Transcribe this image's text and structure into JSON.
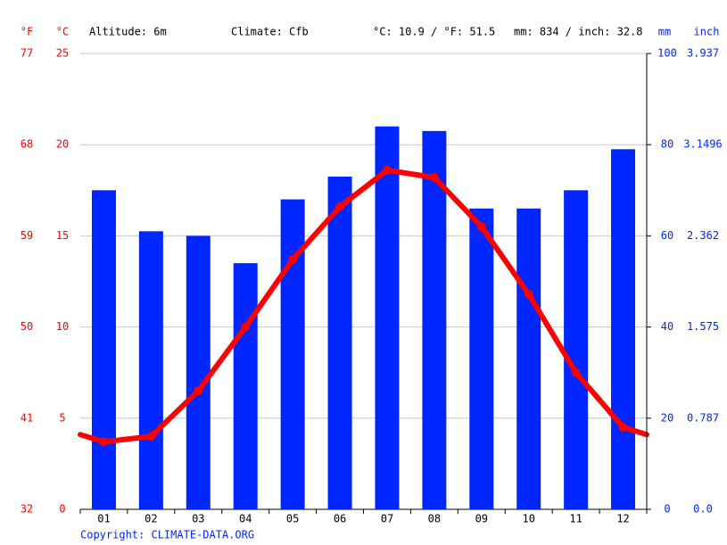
{
  "chart_data": {
    "type": "climate",
    "altitude": "Altitude: 6m",
    "climate": "Climate: Cfb",
    "temperature_summary": "°C: 10.9 / °F: 51.5",
    "precipitation_summary": "mm: 834 / inch: 32.8",
    "y_label": "°C",
    "f_label": "°F",
    "y2_label": "mm",
    "inch_label": "inch",
    "copyright": "Copyright: CLIMATE-DATA.ORG",
    "categories": [
      "01",
      "02",
      "03",
      "04",
      "05",
      "06",
      "07",
      "08",
      "09",
      "10",
      "11",
      "12"
    ],
    "ylim": [
      0,
      25
    ],
    "yticks": [
      0,
      5,
      10,
      15,
      20,
      25
    ],
    "flim": [
      32,
      77
    ],
    "fticks": [
      32,
      41,
      50,
      59,
      68,
      77
    ],
    "y2lim": [
      0,
      100
    ],
    "y2ticks": [
      0,
      20,
      40,
      60,
      80,
      100
    ],
    "inchlim": [
      0,
      3.937
    ],
    "inchticks": [
      {
        "value": 0,
        "label": "0.0"
      },
      0.787,
      1.575,
      2.362,
      3.1496,
      3.937
    ],
    "grid": true,
    "series": [
      {
        "type": "bar",
        "axis": "y2",
        "color": "#0026ff",
        "values": [
          70,
          61,
          60,
          54,
          68,
          73,
          84,
          83,
          66,
          66,
          70,
          79
        ]
      },
      {
        "type": "line",
        "color": "#ff0000",
        "values": [
          3.7,
          4.0,
          6.5,
          10.0,
          13.7,
          16.6,
          18.6,
          18.2,
          15.5,
          11.8,
          7.5,
          4.5
        ]
      }
    ]
  }
}
